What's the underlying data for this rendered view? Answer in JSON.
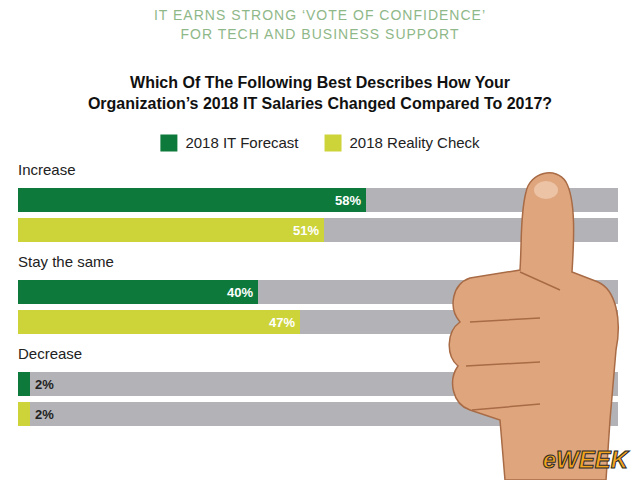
{
  "chart_data": {
    "type": "bar",
    "orientation": "horizontal",
    "subtitle": "IT EARNS STRONG ‘VOTE OF CONFIDENCE’ FOR TECH AND BUSINESS SUPPORT",
    "title": "Which Of The Following Best Describes How Your Organization’s 2018 IT Salaries Changed Compared To 2017?",
    "categories": [
      "Increase",
      "Stay the same",
      "Decrease"
    ],
    "series": [
      {
        "name": "2018 IT Forecast",
        "color": "#0d7a3b",
        "values": [
          58,
          40,
          2
        ],
        "value_labels": [
          "58%",
          "40%",
          "2%"
        ]
      },
      {
        "name": "2018 Reality Check",
        "color": "#cdd43a",
        "values": [
          51,
          47,
          2
        ],
        "value_labels": [
          "51%",
          "47%",
          "2%"
        ]
      }
    ],
    "xlim": [
      0,
      100
    ],
    "tick_labels": false,
    "grid": false,
    "data_labels": true,
    "legend": "top",
    "annotations": [
      "eWEEK"
    ]
  }
}
